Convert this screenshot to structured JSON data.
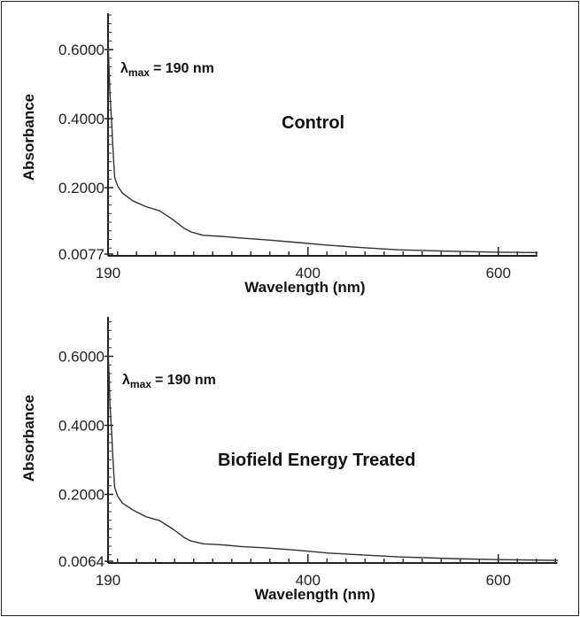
{
  "chart_data": [
    {
      "type": "line",
      "xlabel": "Wavelength (nm)",
      "ylabel": "Absorbance",
      "xlim": [
        190,
        641
      ],
      "ylim": [
        0.0077,
        0.708
      ],
      "x_ticks": [
        190,
        400,
        600
      ],
      "x_tick_labels": [
        "190",
        "400",
        "600"
      ],
      "y_ticks": [
        0.0077,
        0.2,
        0.4,
        0.6
      ],
      "y_tick_labels": [
        "0.0077",
        "0.2000",
        "0.4000",
        "0.6000"
      ],
      "grid": false,
      "annotations": {
        "lambda_symbol": "λ",
        "lambda_sub": "max",
        "lambda_value": "= 190 nm",
        "label": "Control"
      },
      "x": [
        190,
        191,
        192,
        194,
        195,
        197,
        200,
        205,
        216,
        230,
        244,
        258,
        270,
        277,
        290,
        309,
        330,
        356,
        390,
        422,
        460,
        495,
        550,
        600,
        641
      ],
      "y": [
        0.62,
        0.55,
        0.47,
        0.38,
        0.32,
        0.23,
        0.205,
        0.185,
        0.162,
        0.145,
        0.133,
        0.108,
        0.082,
        0.072,
        0.062,
        0.059,
        0.054,
        0.049,
        0.041,
        0.033,
        0.026,
        0.02,
        0.016,
        0.013,
        0.012
      ],
      "line_color": "#333333"
    },
    {
      "type": "line",
      "xlabel": "Wavelength (nm)",
      "ylabel": "Absorbance",
      "xlim": [
        190,
        662
      ],
      "ylim": [
        0.0064,
        0.708
      ],
      "x_ticks": [
        190,
        400,
        600
      ],
      "x_tick_labels": [
        "190",
        "400",
        "600"
      ],
      "y_ticks": [
        0.0064,
        0.2,
        0.4,
        0.6
      ],
      "y_tick_labels": [
        "0.0064",
        "0.2000",
        "0.4000",
        "0.6000"
      ],
      "grid": false,
      "annotations": {
        "lambda_symbol": "λ",
        "lambda_sub": "max",
        "lambda_value": "= 190 nm",
        "label": "Biofield Energy Treated"
      },
      "x": [
        190,
        191,
        192,
        194,
        195,
        197,
        200,
        205,
        216,
        230,
        244,
        258,
        270,
        277,
        290,
        309,
        330,
        356,
        390,
        422,
        460,
        495,
        550,
        600,
        662
      ],
      "y": [
        0.62,
        0.55,
        0.46,
        0.37,
        0.31,
        0.22,
        0.195,
        0.175,
        0.155,
        0.135,
        0.124,
        0.1,
        0.075,
        0.065,
        0.057,
        0.054,
        0.049,
        0.045,
        0.038,
        0.03,
        0.024,
        0.019,
        0.014,
        0.011,
        0.009
      ],
      "line_color": "#333333"
    }
  ]
}
